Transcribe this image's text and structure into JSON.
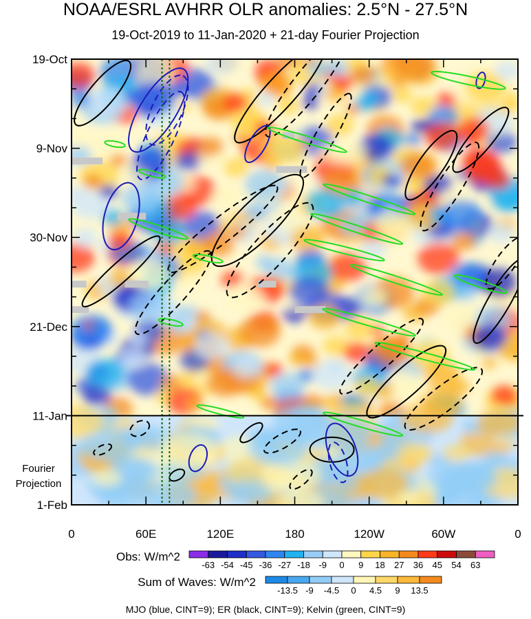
{
  "title": "NOAA/ESRL AVHRR OLR anomalies: 2.5°N - 27.5°N",
  "subtitle": "19-Oct-2019 to 11-Jan-2020 + 21-day Fourier Projection",
  "footnote": "MJO (blue, CINT=9); ER (black, CINT=9); Kelvin (green, CINT=9)",
  "chart_data": {
    "type": "heatmap",
    "title": "NOAA/ESRL AVHRR OLR anomalies: 2.5°N - 27.5°N",
    "subtitle": "19-Oct-2019 to 11-Jan-2020 + 21-day Fourier Projection",
    "x_ticks": [
      "0",
      "60E",
      "120E",
      "180",
      "120W",
      "60W",
      "0"
    ],
    "x_tick_lon": [
      0,
      60,
      120,
      180,
      240,
      300,
      360
    ],
    "y_ticks": [
      "19-Oct",
      "9-Nov",
      "30-Nov",
      "21-Dec",
      "11-Jan",
      "1-Feb"
    ],
    "y_tick_day": [
      0,
      21,
      42,
      63,
      84,
      105
    ],
    "projection_label_lines": [
      "Fourier",
      "Projection"
    ],
    "observed_end": "11-Jan",
    "dotted_reference_lines_lon": [
      73,
      79
    ],
    "obs_legend": {
      "label": "Obs: W/m^2",
      "levels": [
        "-63",
        "-54",
        "-45",
        "-36",
        "-27",
        "-18",
        "-9",
        "0",
        "9",
        "18",
        "27",
        "36",
        "45",
        "54",
        "63"
      ],
      "colors": [
        "#8c2ce8",
        "#1a1a9c",
        "#1f2fc8",
        "#3559e0",
        "#2f86f2",
        "#20b3f0",
        "#97ccf7",
        "#cfe6fb",
        "#fff7c0",
        "#ffd54a",
        "#f9b428",
        "#f48a1f",
        "#ff3a1a",
        "#cc0b0b",
        "#8c4b3a",
        "#ef5fc1"
      ]
    },
    "waves_legend": {
      "label": "Sum of Waves: W/m^2",
      "levels": [
        "-13.5",
        "-9",
        "-4.5",
        "0",
        "4.5",
        "9",
        "13.5"
      ],
      "colors": [
        "#1f8ae6",
        "#48a8f2",
        "#92cdf7",
        "#cfe6fb",
        "#fff6b8",
        "#ffd86a",
        "#fbb83a",
        "#f58a1f"
      ]
    },
    "contour_series": [
      {
        "name": "MJO",
        "color": "#1a1ab8",
        "cint": 9
      },
      {
        "name": "ER",
        "color": "#000000",
        "cint": 9
      },
      {
        "name": "Kelvin",
        "color": "#22dd22",
        "cint": 9
      }
    ]
  }
}
